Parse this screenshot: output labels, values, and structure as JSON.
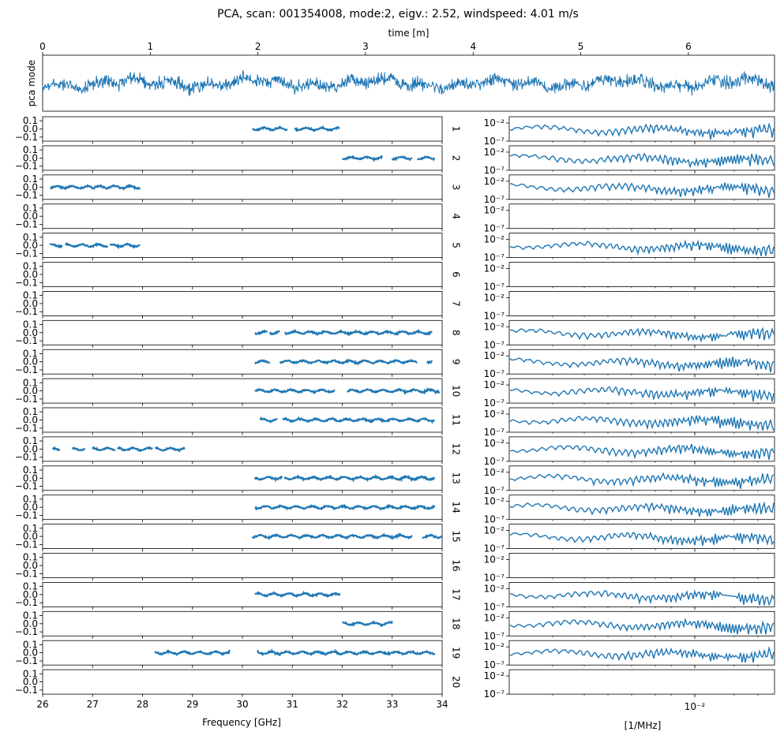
{
  "chart_data": {
    "type": "line",
    "title": "PCA, scan: 001354008, mode:2, eigv.: 2.52, windspeed: 4.01 m/s",
    "series_color": "#1f77b4",
    "time_panel": {
      "xlabel": "time [m]",
      "ylabel": "pca mode",
      "xlim": [
        0,
        6.8
      ],
      "xticks": [
        0,
        1,
        2,
        3,
        4,
        5,
        6
      ],
      "xtick_labels": [
        "0",
        "1",
        "2",
        "3",
        "4",
        "5",
        "6"
      ]
    },
    "freq_panels": {
      "xlabel": "Frequency [GHz]",
      "xlim": [
        26,
        34
      ],
      "xticks": [
        26,
        27,
        28,
        29,
        30,
        31,
        32,
        33,
        34
      ],
      "xtick_labels": [
        "26",
        "27",
        "28",
        "29",
        "30",
        "31",
        "32",
        "33",
        "34"
      ],
      "ylim": [
        -0.15,
        0.15
      ],
      "yticks": [
        0.1,
        0.0,
        -0.1
      ],
      "ytick_labels": [
        "0.1",
        "0.0",
        "−0.1"
      ]
    },
    "spectrum_panels": {
      "xlabel": "[1/MHz]",
      "xscale": "log",
      "xtick_label": "10⁻²",
      "ylim_log10": [
        -7,
        -1
      ],
      "ytick_labels": [
        "10⁻²",
        "10⁻⁷"
      ]
    },
    "feeds": [
      {
        "label": "1",
        "segments": [
          [
            30.2,
            30.9
          ],
          [
            31.05,
            31.95
          ]
        ],
        "has_spectrum": true
      },
      {
        "label": "2",
        "segments": [
          [
            32.0,
            32.8
          ],
          [
            33.0,
            33.4
          ],
          [
            33.5,
            33.85
          ]
        ],
        "has_spectrum": true
      },
      {
        "label": "3",
        "segments": [
          [
            26.15,
            27.0
          ],
          [
            27.0,
            27.95
          ]
        ],
        "has_spectrum": true
      },
      {
        "label": "4",
        "segments": [],
        "has_spectrum": false
      },
      {
        "label": "5",
        "segments": [
          [
            26.15,
            26.4
          ],
          [
            26.45,
            27.3
          ],
          [
            27.35,
            27.95
          ]
        ],
        "has_spectrum": true
      },
      {
        "label": "6",
        "segments": [],
        "has_spectrum": false
      },
      {
        "label": "7",
        "segments": [],
        "has_spectrum": false
      },
      {
        "label": "8",
        "segments": [
          [
            30.25,
            30.5
          ],
          [
            30.55,
            30.75
          ],
          [
            30.85,
            33.8
          ]
        ],
        "has_spectrum": true
      },
      {
        "label": "9",
        "segments": [
          [
            30.25,
            30.55
          ],
          [
            30.75,
            33.5
          ],
          [
            33.7,
            33.8
          ]
        ],
        "has_spectrum": true
      },
      {
        "label": "10",
        "segments": [
          [
            30.25,
            31.85
          ],
          [
            32.1,
            33.95
          ]
        ],
        "has_spectrum": true
      },
      {
        "label": "11",
        "segments": [
          [
            30.35,
            30.7
          ],
          [
            30.8,
            33.85
          ]
        ],
        "has_spectrum": true
      },
      {
        "label": "12",
        "segments": [
          [
            26.2,
            26.35
          ],
          [
            26.6,
            26.85
          ],
          [
            27.0,
            27.45
          ],
          [
            27.5,
            28.2
          ],
          [
            28.25,
            28.85
          ]
        ],
        "has_spectrum": true
      },
      {
        "label": "13",
        "segments": [
          [
            30.25,
            30.8
          ],
          [
            30.85,
            33.85
          ]
        ],
        "has_spectrum": true
      },
      {
        "label": "14",
        "segments": [
          [
            30.25,
            33.85
          ]
        ],
        "has_spectrum": true
      },
      {
        "label": "15",
        "segments": [
          [
            30.2,
            33.4
          ],
          [
            33.6,
            34.0
          ]
        ],
        "has_spectrum": true
      },
      {
        "label": "16",
        "segments": [],
        "has_spectrum": false
      },
      {
        "label": "17",
        "segments": [
          [
            30.25,
            31.95
          ]
        ],
        "has_spectrum": true
      },
      {
        "label": "18",
        "segments": [
          [
            32.0,
            33.0
          ]
        ],
        "has_spectrum": true
      },
      {
        "label": "19",
        "segments": [
          [
            28.25,
            29.75
          ],
          [
            30.3,
            33.85
          ]
        ],
        "has_spectrum": true
      },
      {
        "label": "20",
        "segments": [],
        "has_spectrum": false
      }
    ]
  }
}
